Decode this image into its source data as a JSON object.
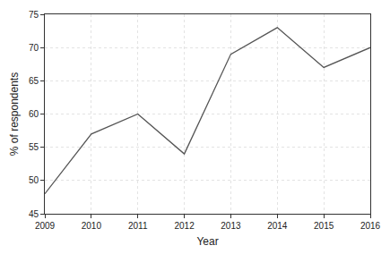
{
  "chart_data": {
    "type": "line",
    "x_label": "Year",
    "y_label": "% of respondents",
    "x": [
      2009,
      2010,
      2011,
      2012,
      2013,
      2014,
      2015,
      2016
    ],
    "values": [
      48,
      57,
      60,
      54,
      69,
      73,
      67,
      70
    ],
    "color": "#555555",
    "xlim": [
      2009,
      2016
    ],
    "xticks": [
      2009,
      2010,
      2011,
      2012,
      2013,
      2014,
      2015,
      2016
    ],
    "ylim": [
      45,
      75
    ],
    "yticks": [
      45,
      50,
      55,
      60,
      65,
      70,
      75
    ],
    "grid": true
  }
}
